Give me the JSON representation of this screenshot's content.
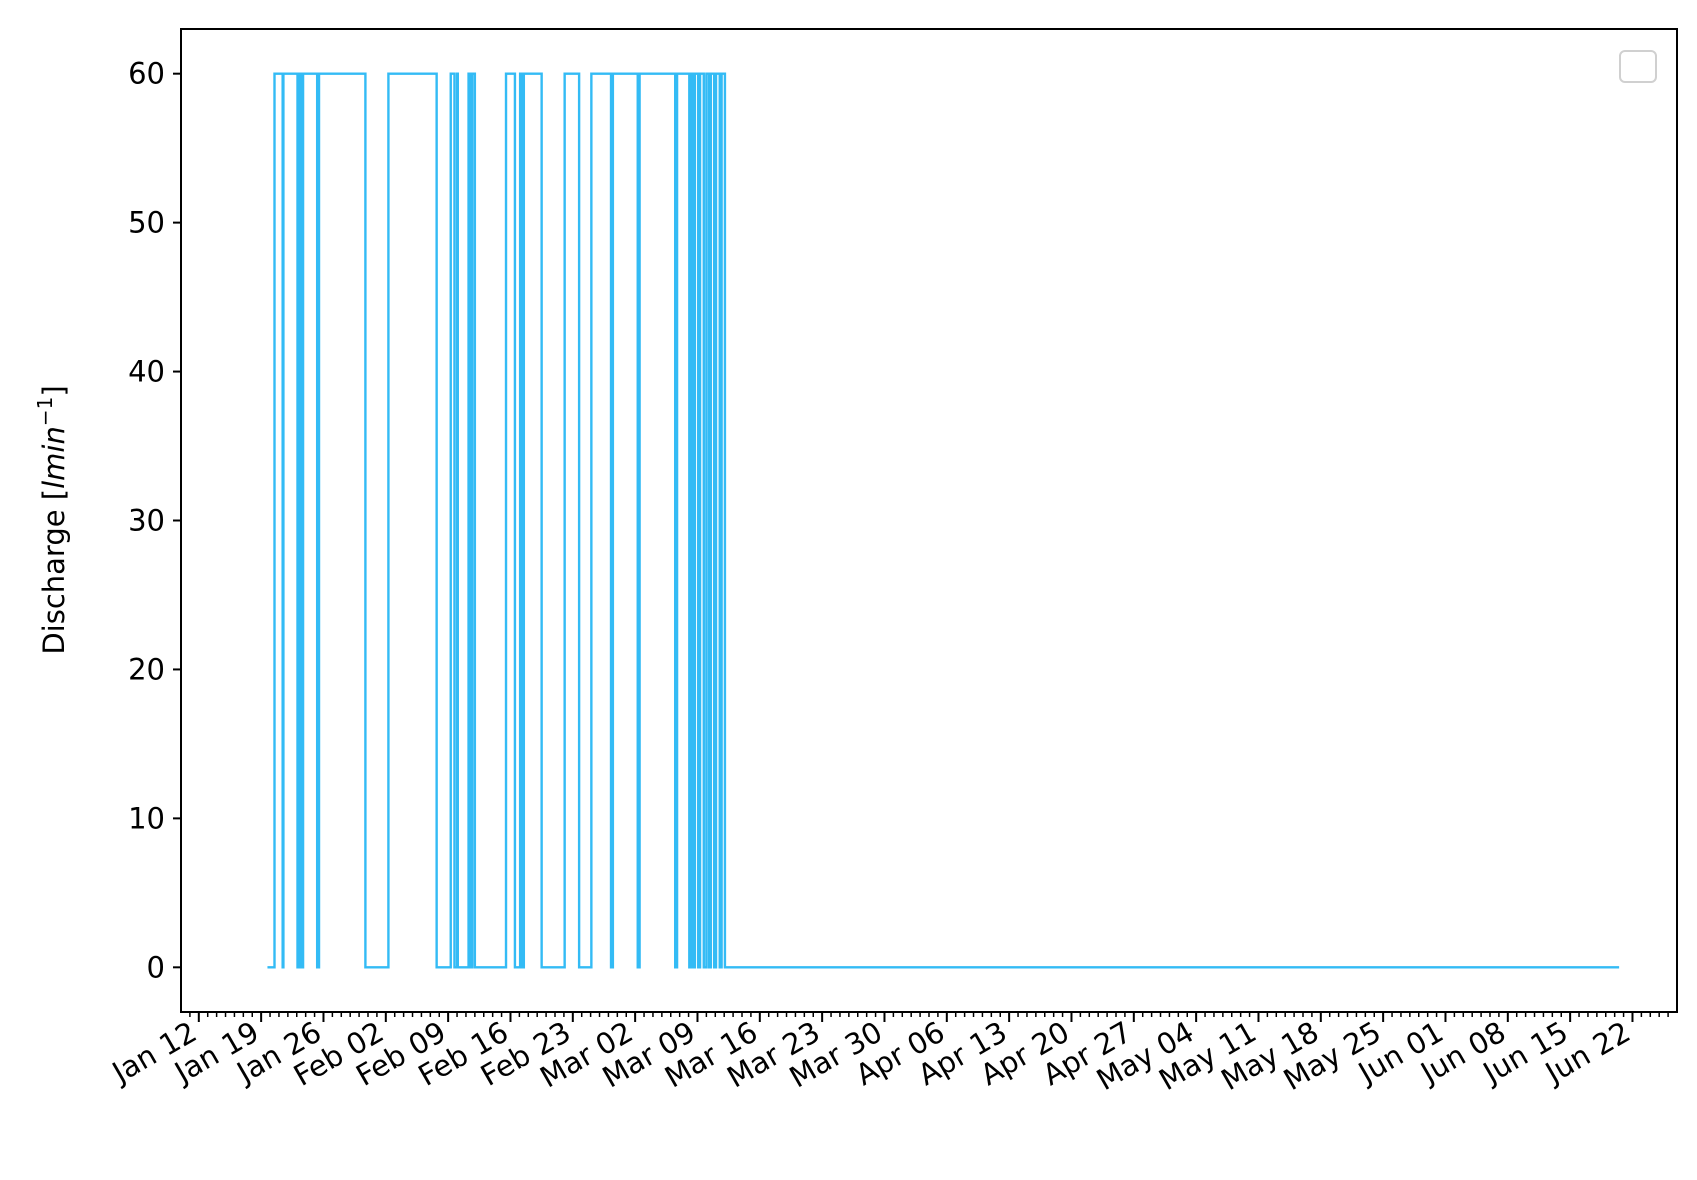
{
  "chart_data": {
    "type": "line",
    "title": "",
    "xlabel": "",
    "ylabel_text": "Discharge [",
    "ylabel_unit": "lmin",
    "ylabel_exponent": "−1",
    "ylabel_close": "]",
    "ylim": [
      -3,
      63
    ],
    "xlim": [
      "2021-01-10",
      "2021-06-27"
    ],
    "yticks": [
      0,
      10,
      20,
      30,
      40,
      50,
      60
    ],
    "xticks": [
      {
        "date": "2021-01-12",
        "label": "Jan 12"
      },
      {
        "date": "2021-01-19",
        "label": "Jan 19"
      },
      {
        "date": "2021-01-26",
        "label": "Jan 26"
      },
      {
        "date": "2021-02-02",
        "label": "Feb 02"
      },
      {
        "date": "2021-02-09",
        "label": "Feb 09"
      },
      {
        "date": "2021-02-16",
        "label": "Feb 16"
      },
      {
        "date": "2021-02-23",
        "label": "Feb 23"
      },
      {
        "date": "2021-03-02",
        "label": "Mar 02"
      },
      {
        "date": "2021-03-09",
        "label": "Mar 09"
      },
      {
        "date": "2021-03-16",
        "label": "Mar 16"
      },
      {
        "date": "2021-03-23",
        "label": "Mar 23"
      },
      {
        "date": "2021-03-30",
        "label": "Mar 30"
      },
      {
        "date": "2021-04-06",
        "label": "Apr 06"
      },
      {
        "date": "2021-04-13",
        "label": "Apr 13"
      },
      {
        "date": "2021-04-20",
        "label": "Apr 20"
      },
      {
        "date": "2021-04-27",
        "label": "Apr 27"
      },
      {
        "date": "2021-05-04",
        "label": "May 04"
      },
      {
        "date": "2021-05-11",
        "label": "May 11"
      },
      {
        "date": "2021-05-18",
        "label": "May 18"
      },
      {
        "date": "2021-05-25",
        "label": "May 25"
      },
      {
        "date": "2021-06-01",
        "label": "Jun 01"
      },
      {
        "date": "2021-06-08",
        "label": "Jun 08"
      },
      {
        "date": "2021-06-15",
        "label": "Jun 15"
      },
      {
        "date": "2021-06-22",
        "label": "Jun 22"
      }
    ],
    "grid": false,
    "legend": {
      "placement": "top-right",
      "entries": []
    },
    "line_color": "#33bbf5",
    "series": [
      {
        "step": "post",
        "points": [
          [
            "2021-01-19T17:00",
            0
          ],
          [
            "2021-01-20T12:00",
            60
          ],
          [
            "2021-01-21T10:00",
            0
          ],
          [
            "2021-01-21T12:00",
            60
          ],
          [
            "2021-01-23T02:00",
            0
          ],
          [
            "2021-01-23T07:00",
            60
          ],
          [
            "2021-01-23T12:00",
            0
          ],
          [
            "2021-01-23T17:00",
            60
          ],
          [
            "2021-01-25T07:00",
            0
          ],
          [
            "2021-01-25T12:00",
            60
          ],
          [
            "2021-01-30T17:00",
            0
          ],
          [
            "2021-02-02T07:00",
            60
          ],
          [
            "2021-02-07T17:00",
            0
          ],
          [
            "2021-02-09T07:00",
            60
          ],
          [
            "2021-02-09T17:00",
            0
          ],
          [
            "2021-02-10T00:00",
            60
          ],
          [
            "2021-02-10T02:00",
            0
          ],
          [
            "2021-02-11T07:00",
            60
          ],
          [
            "2021-02-11T12:00",
            0
          ],
          [
            "2021-02-11T17:00",
            60
          ],
          [
            "2021-02-12T00:00",
            0
          ],
          [
            "2021-02-15T12:00",
            60
          ],
          [
            "2021-02-16T12:00",
            0
          ],
          [
            "2021-02-17T02:00",
            60
          ],
          [
            "2021-02-17T07:00",
            0
          ],
          [
            "2021-02-17T12:00",
            60
          ],
          [
            "2021-02-19T12:00",
            0
          ],
          [
            "2021-02-22T02:00",
            60
          ],
          [
            "2021-02-23T17:00",
            0
          ],
          [
            "2021-02-25T02:00",
            60
          ],
          [
            "2021-02-27T07:00",
            0
          ],
          [
            "2021-02-27T12:00",
            60
          ],
          [
            "2021-03-02T07:00",
            0
          ],
          [
            "2021-03-02T12:00",
            60
          ],
          [
            "2021-03-06T12:00",
            0
          ],
          [
            "2021-03-06T17:00",
            60
          ],
          [
            "2021-03-08T02:00",
            0
          ],
          [
            "2021-03-08T07:00",
            60
          ],
          [
            "2021-03-08T12:00",
            0
          ],
          [
            "2021-03-08T17:00",
            60
          ],
          [
            "2021-03-09T02:00",
            0
          ],
          [
            "2021-03-09T07:00",
            60
          ],
          [
            "2021-03-09T17:00",
            0
          ],
          [
            "2021-03-10T00:00",
            60
          ],
          [
            "2021-03-10T07:00",
            0
          ],
          [
            "2021-03-10T12:00",
            60
          ],
          [
            "2021-03-10T21:00",
            0
          ],
          [
            "2021-03-11T02:00",
            60
          ],
          [
            "2021-03-11T12:00",
            0
          ],
          [
            "2021-03-11T17:00",
            60
          ],
          [
            "2021-03-12T02:00",
            0
          ],
          [
            "2021-06-20T12:00",
            0
          ]
        ]
      }
    ]
  }
}
